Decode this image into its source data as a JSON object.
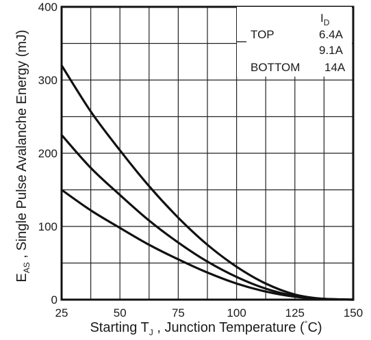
{
  "chart_data": {
    "type": "line",
    "title": "",
    "xlabel": {
      "main": "Starting T",
      "sub": "J",
      "rest": " , Junction Temperature  (",
      "deg": "°",
      "unit": "C)"
    },
    "ylabel": {
      "main": "E",
      "sub": "AS",
      "rest": " , Single Pulse Avalanche Energy  (mJ)"
    },
    "xlim": [
      25,
      150
    ],
    "ylim": [
      0,
      400
    ],
    "xticks": [
      "25",
      "50",
      "75",
      "100",
      "125",
      "150"
    ],
    "yticks": [
      "0",
      "100",
      "200",
      "300",
      "400"
    ],
    "grid": true,
    "legend": {
      "placement": "top-right",
      "header_main": "I",
      "header_sub": "D",
      "rows": [
        {
          "label": "TOP",
          "value": "6.4A"
        },
        {
          "label": "",
          "value": "9.1A"
        },
        {
          "label": "BOTTOM",
          "value": "14A"
        }
      ]
    },
    "series": [
      {
        "name": "6.4A",
        "x": [
          25,
          37.5,
          50,
          62.5,
          75,
          87.5,
          100,
          112.5,
          125,
          137.5,
          150
        ],
        "y": [
          320,
          257,
          204,
          155,
          112,
          75,
          45,
          22,
          7,
          1,
          0
        ]
      },
      {
        "name": "9.1A",
        "x": [
          25,
          37.5,
          50,
          62.5,
          75,
          87.5,
          100,
          112.5,
          125,
          137.5,
          150
        ],
        "y": [
          225,
          180,
          143,
          108,
          78,
          52,
          31,
          15,
          5,
          1,
          0
        ]
      },
      {
        "name": "14A",
        "x": [
          25,
          37.5,
          50,
          62.5,
          75,
          87.5,
          100,
          112.5,
          125,
          137.5,
          150
        ],
        "y": [
          150,
          122,
          98,
          75,
          55,
          37,
          22,
          11,
          4,
          1,
          0
        ]
      }
    ]
  }
}
